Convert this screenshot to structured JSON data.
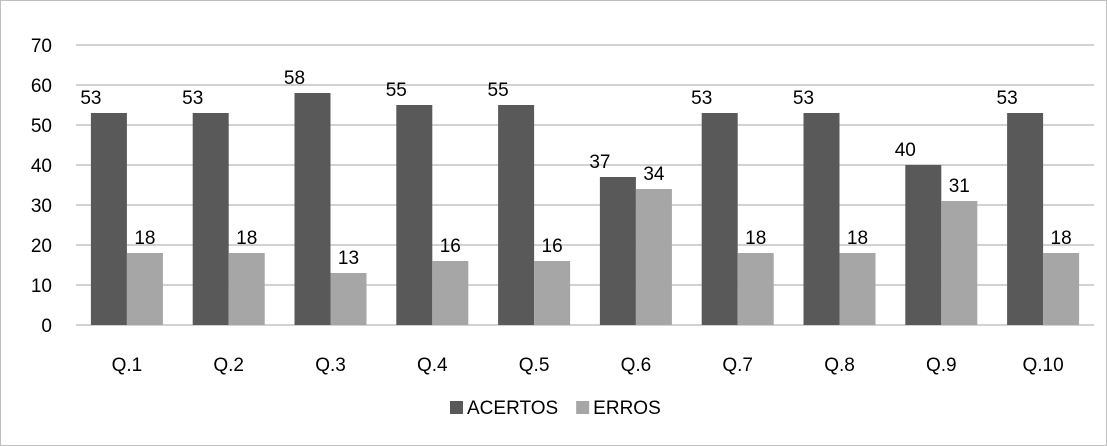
{
  "chart_data": {
    "type": "bar",
    "categories": [
      "Q.1",
      "Q.2",
      "Q.3",
      "Q.4",
      "Q.5",
      "Q.6",
      "Q.7",
      "Q.8",
      "Q.9",
      "Q.10"
    ],
    "series": [
      {
        "name": "ACERTOS",
        "color": "#595959",
        "values": [
          53,
          53,
          58,
          55,
          55,
          37,
          53,
          53,
          40,
          53
        ]
      },
      {
        "name": "ERROS",
        "color": "#a6a6a6",
        "values": [
          18,
          18,
          13,
          16,
          16,
          34,
          18,
          18,
          31,
          18
        ]
      }
    ],
    "ylim": [
      0,
      70
    ],
    "yticks": [
      0,
      10,
      20,
      30,
      40,
      50,
      60,
      70
    ],
    "grid": true,
    "gridline_color": "#a6a6a6",
    "legend_position": "bottom",
    "data_labels": true
  }
}
